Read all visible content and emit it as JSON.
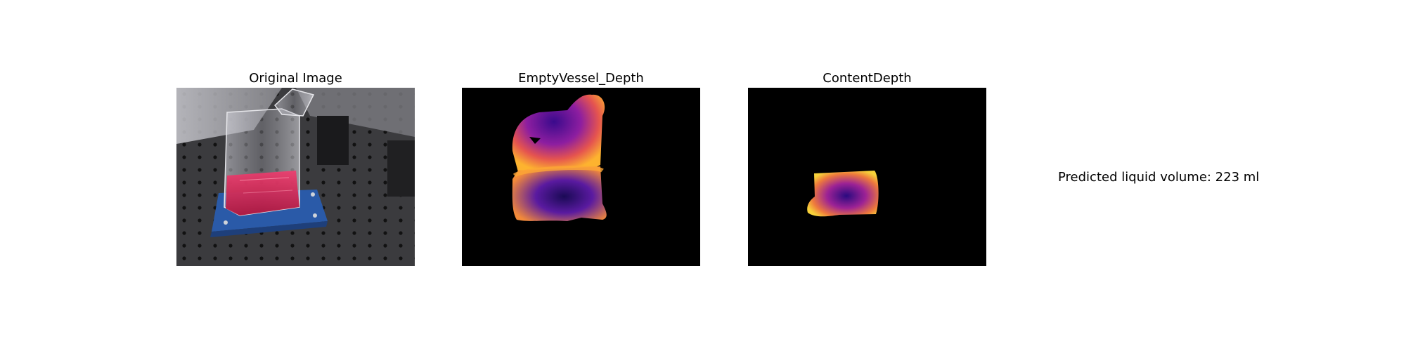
{
  "panels": [
    {
      "title": "Original Image"
    },
    {
      "title": "EmptyVessel_Depth"
    },
    {
      "title": "ContentDepth"
    }
  ],
  "prediction": {
    "text": "Predicted liquid volume: 223 ml"
  },
  "colors": {
    "background": "#ffffff",
    "depth_background": "#000000",
    "colormap": [
      "#0d0887",
      "#6a00a8",
      "#b12a90",
      "#e16462",
      "#fca636",
      "#f0f921"
    ],
    "liquid": "#d81b46",
    "base_plate": "#2a5aa8",
    "table": "#3a3a3c"
  }
}
